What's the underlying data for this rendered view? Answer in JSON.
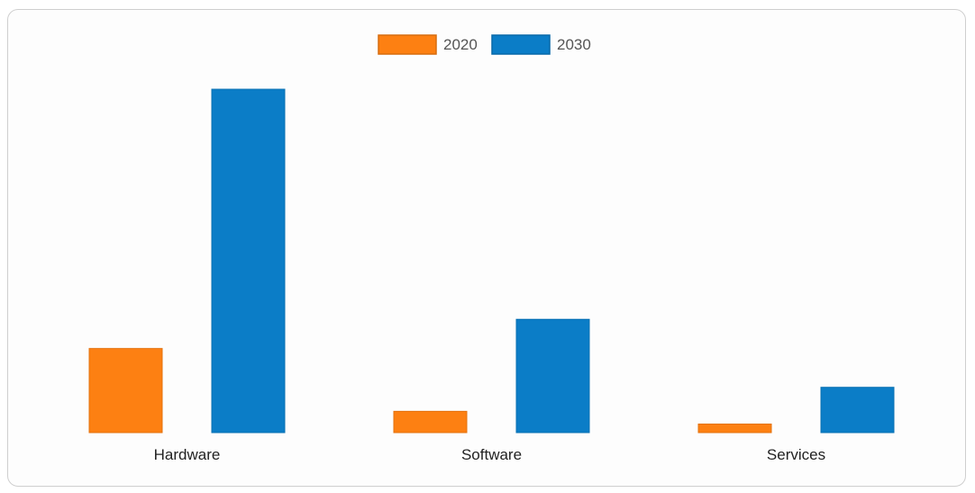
{
  "chart_data": {
    "type": "bar",
    "categories": [
      "Hardware",
      "Software",
      "Services"
    ],
    "series": [
      {
        "name": "2020",
        "color": "#fd8012",
        "values": [
          24.5,
          6.2,
          2.5
        ]
      },
      {
        "name": "2030",
        "color": "#0b7dc7",
        "values": [
          100,
          33,
          13.2
        ]
      }
    ],
    "ylim": [
      0,
      100
    ],
    "grid": false,
    "legend_position": "top-center"
  }
}
